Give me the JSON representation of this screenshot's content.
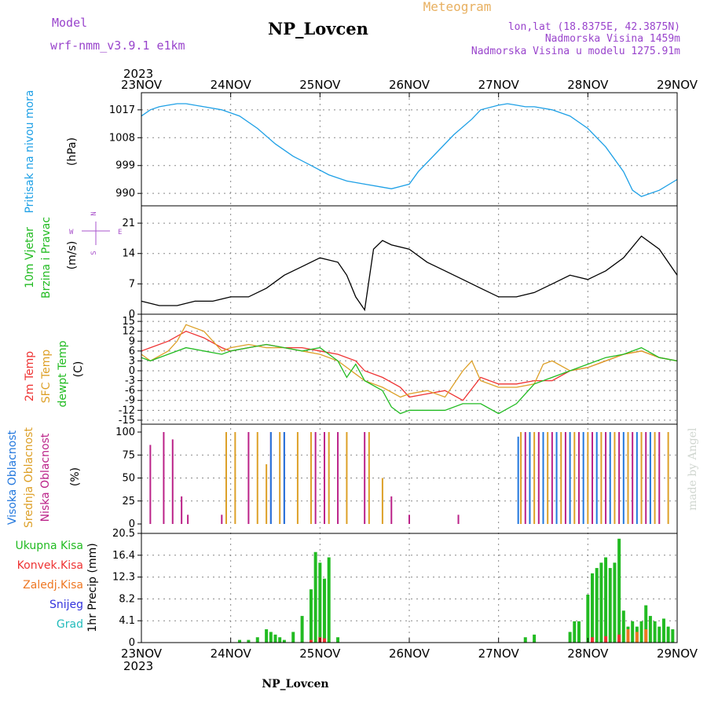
{
  "header": {
    "model_label": "Model",
    "model_value": "wrf-nmm_v3.9.1  e1km",
    "station": "NP_Lovcen",
    "meteogram": "Meteogram",
    "lonlat": "lon,lat (18.8375E, 42.3875N)",
    "elevation": "Nadmorska Visina 1459m",
    "model_elevation": "Nadmorska Visina u modelu 1275.91m",
    "year_top": "2023",
    "year_bottom": "2023",
    "footer_station": "NP_Lovcen",
    "credit": "made by Angel"
  },
  "colors": {
    "pressure": "#1ea0e6",
    "wind_speed": "#000000",
    "t2m": "#ee3333",
    "tsfc": "#dda028",
    "dewpoint": "#22bb22",
    "cloud_high": "#2277dd",
    "cloud_mid": "#dda028",
    "cloud_low": "#bb2288",
    "precip_total": "#22bb22",
    "precip_conv": "#ee3333",
    "precip_frz": "#ee7722",
    "snow": "#3333dd",
    "hail": "#22bbbb",
    "left_label_purple": "#aa55cc",
    "header_purple": "#9944cc",
    "meteogram_orange": "#e8b060"
  },
  "chart_data": [
    {
      "type": "line",
      "panel": "pressure",
      "ylabel_lines": [
        "Pritisak na nivou mora",
        "(hPa)"
      ],
      "ylim": [
        987,
        1019.5
      ],
      "yticks": [
        "990",
        "999",
        "1008",
        "1017"
      ],
      "x_categories": [
        "23NOV",
        "24NOV",
        "25NOV",
        "26NOV",
        "27NOV",
        "28NOV",
        "29NOV"
      ],
      "series": [
        {
          "x_days": [
            0.0,
            0.1,
            0.2,
            0.3,
            0.4,
            0.5,
            0.7,
            0.9,
            1.1,
            1.3,
            1.5,
            1.7,
            1.9,
            2.1,
            2.3,
            2.5,
            2.7,
            2.8,
            3.0,
            3.1,
            3.3,
            3.5,
            3.7,
            3.8,
            4.0,
            4.1,
            4.2,
            4.3,
            4.4,
            4.6,
            4.8,
            5.0,
            5.2,
            5.4,
            5.5,
            5.6,
            5.8,
            6.0
          ],
          "values": [
            1015,
            1017,
            1018,
            1018.5,
            1019,
            1019,
            1018,
            1017,
            1015,
            1011,
            1006,
            1002,
            999,
            996,
            994,
            993,
            992,
            991.5,
            993,
            997,
            1003,
            1009,
            1014,
            1017,
            1018.5,
            1019,
            1018.5,
            1018,
            1018,
            1017,
            1015,
            1011,
            1005,
            997,
            991,
            989,
            991,
            994.5
          ]
        }
      ]
    },
    {
      "type": "line",
      "panel": "wind",
      "ylabel_lines": [
        "10m Vjetar",
        "Brzina i Pravac",
        "(m/s)"
      ],
      "compass": [
        "N",
        "W",
        "E",
        "S"
      ],
      "ylim": [
        0,
        25
      ],
      "yticks": [
        "0",
        "7",
        "14",
        "21"
      ],
      "series": [
        {
          "x_days": [
            0.0,
            0.2,
            0.4,
            0.6,
            0.8,
            1.0,
            1.2,
            1.4,
            1.6,
            1.8,
            2.0,
            2.2,
            2.3,
            2.4,
            2.5,
            2.6,
            2.7,
            2.8,
            3.0,
            3.2,
            3.4,
            3.6,
            3.8,
            4.0,
            4.2,
            4.4,
            4.6,
            4.8,
            5.0,
            5.2,
            5.4,
            5.6,
            5.8,
            6.0
          ],
          "values": [
            3,
            2,
            2,
            3,
            3,
            4,
            4,
            6,
            9,
            11,
            13,
            12,
            9,
            4,
            1,
            15,
            17,
            16,
            15,
            12,
            10,
            8,
            6,
            4,
            4,
            5,
            7,
            9,
            8,
            10,
            13,
            18,
            15,
            9
          ]
        }
      ]
    },
    {
      "type": "line",
      "panel": "temperature",
      "ylabel_lines": [
        "2m Temp",
        "SFC Temp",
        "dewpt Temp",
        "(C)"
      ],
      "ylim": [
        -15.5,
        15.5
      ],
      "yticks": [
        "-15",
        "-12",
        "-9",
        "-6",
        "-3",
        "0",
        "3",
        "6",
        "9",
        "12",
        "15"
      ],
      "series": [
        {
          "name": "2m Temp",
          "x_days": [
            0.0,
            0.1,
            0.3,
            0.5,
            0.7,
            0.9,
            1.0,
            1.2,
            1.4,
            1.6,
            1.8,
            2.0,
            2.2,
            2.4,
            2.5,
            2.7,
            2.9,
            3.0,
            3.2,
            3.4,
            3.6,
            3.8,
            4.0,
            4.2,
            4.4,
            4.6,
            4.8,
            5.0,
            5.2,
            5.4,
            5.6,
            5.8,
            6.0
          ],
          "values": [
            6,
            7,
            9,
            12,
            10,
            7,
            6,
            7,
            8,
            7,
            7,
            6,
            5,
            3,
            0,
            -2,
            -5,
            -8,
            -7,
            -6,
            -9,
            -2,
            -4,
            -4,
            -3,
            -3,
            0,
            1,
            3,
            5,
            6,
            4,
            3
          ]
        },
        {
          "name": "SFC Temp",
          "x_days": [
            0.0,
            0.1,
            0.3,
            0.4,
            0.5,
            0.7,
            0.9,
            1.0,
            1.2,
            1.4,
            1.6,
            1.8,
            2.0,
            2.2,
            2.4,
            2.5,
            2.7,
            2.9,
            3.0,
            3.2,
            3.4,
            3.6,
            3.7,
            3.8,
            4.0,
            4.2,
            4.4,
            4.5,
            4.6,
            4.8,
            5.0,
            5.2,
            5.4,
            5.6,
            5.8,
            6.0
          ],
          "values": [
            5,
            3,
            6,
            9,
            14,
            12,
            6,
            7,
            8,
            7,
            7,
            6,
            5,
            3,
            -1,
            -3,
            -5,
            -8,
            -7,
            -6,
            -8,
            0,
            3,
            -3,
            -5,
            -5,
            -4,
            2,
            3,
            0,
            1,
            3,
            5,
            6,
            4,
            3
          ]
        },
        {
          "name": "dewpt Temp",
          "x_days": [
            0.0,
            0.1,
            0.3,
            0.5,
            0.7,
            0.9,
            1.0,
            1.2,
            1.4,
            1.6,
            1.8,
            2.0,
            2.2,
            2.3,
            2.4,
            2.5,
            2.7,
            2.8,
            2.9,
            3.0,
            3.2,
            3.4,
            3.6,
            3.8,
            4.0,
            4.2,
            4.4,
            4.6,
            4.8,
            5.0,
            5.2,
            5.4,
            5.6,
            5.8,
            6.0
          ],
          "values": [
            4,
            3,
            5,
            7,
            6,
            5,
            6,
            7,
            8,
            7,
            6,
            7,
            3,
            -2,
            2,
            -3,
            -6,
            -11,
            -13,
            -12,
            -12,
            -12,
            -10,
            -10,
            -13,
            -10,
            -4,
            -2,
            0,
            2,
            4,
            5,
            7,
            4,
            3
          ]
        }
      ]
    },
    {
      "type": "bar",
      "panel": "cloud",
      "ylabel_lines": [
        "Visoka Oblacnost",
        "Srednja Oblacnost",
        "Niska Oblacnost",
        "(%)"
      ],
      "ylim": [
        0,
        100
      ],
      "yticks": [
        "0",
        "25",
        "50",
        "75",
        "100"
      ],
      "series": [
        {
          "name": "Niska Oblacnost",
          "x_days": [
            0.1,
            0.25,
            0.35,
            0.45,
            0.52,
            0.9,
            1.2,
            1.45,
            1.6,
            1.95,
            2.05,
            2.2,
            2.5,
            2.8,
            3.0,
            3.55,
            4.3,
            4.45,
            4.6,
            4.75,
            4.9,
            5.05,
            5.2,
            5.35,
            5.5,
            5.65,
            5.8
          ],
          "values": [
            86,
            100,
            92,
            30,
            10,
            10,
            100,
            100,
            100,
            100,
            100,
            100,
            100,
            30,
            10,
            10,
            100,
            100,
            100,
            100,
            100,
            100,
            100,
            100,
            100,
            100,
            100
          ]
        },
        {
          "name": "Srednja Oblacnost",
          "x_days": [
            0.95,
            1.05,
            1.3,
            1.4,
            1.55,
            1.75,
            1.9,
            2.1,
            2.3,
            2.55,
            2.7,
            4.25,
            4.4,
            4.55,
            4.7,
            4.85,
            5.0,
            5.15,
            5.3,
            5.45,
            5.6,
            5.75,
            5.9
          ],
          "values": [
            100,
            100,
            100,
            65,
            100,
            100,
            100,
            100,
            100,
            100,
            50,
            100,
            100,
            100,
            100,
            100,
            100,
            100,
            100,
            100,
            100,
            100,
            100
          ]
        },
        {
          "name": "Visoka Oblacnost",
          "x_days": [
            1.45,
            1.6,
            4.22,
            4.35,
            4.5,
            4.65,
            4.8,
            4.95,
            5.1,
            5.25,
            5.4,
            5.55,
            5.7
          ],
          "values": [
            100,
            100,
            95,
            100,
            100,
            100,
            100,
            100,
            100,
            100,
            100,
            100,
            100
          ]
        }
      ]
    },
    {
      "type": "bar",
      "panel": "precip",
      "ylabel_lines": [
        "1hr Precip (mm)"
      ],
      "legend": [
        "Ukupna Kisa",
        "Konvek.Kisa",
        "Zaledj.Kisa",
        "Snijeg",
        "Grad"
      ],
      "ylim": [
        0,
        20.5
      ],
      "yticks": [
        "0",
        "4.1",
        "8.2",
        "12.3",
        "16.4",
        "20.5"
      ],
      "series": [
        {
          "name": "Ukupna Kisa",
          "x_days": [
            1.1,
            1.2,
            1.3,
            1.4,
            1.45,
            1.5,
            1.55,
            1.6,
            1.7,
            1.8,
            1.9,
            1.95,
            2.0,
            2.05,
            2.1,
            2.2,
            4.3,
            4.4,
            4.8,
            4.85,
            4.9,
            5.0,
            5.05,
            5.1,
            5.15,
            5.2,
            5.25,
            5.3,
            5.35,
            5.4,
            5.45,
            5.5,
            5.55,
            5.6,
            5.65,
            5.7,
            5.75,
            5.8,
            5.85,
            5.9,
            5.95
          ],
          "values": [
            0.5,
            0.5,
            1.0,
            2.5,
            2.0,
            1.5,
            1.0,
            0.5,
            2.0,
            5.0,
            10.0,
            17.0,
            15.0,
            12.0,
            16.0,
            1.0,
            1.0,
            1.5,
            2.0,
            4.0,
            4.0,
            9.0,
            13.0,
            14.0,
            15.0,
            16.0,
            14.0,
            15.0,
            19.5,
            6.0,
            3.0,
            4.0,
            3.0,
            4.0,
            7.0,
            5.0,
            4.0,
            3.0,
            4.5,
            3.0,
            2.5
          ]
        },
        {
          "name": "Konvek.Kisa",
          "x_days": [
            1.9,
            2.0,
            2.05,
            5.05,
            5.2,
            5.35
          ],
          "values": [
            0.5,
            1.0,
            0.8,
            1.0,
            1.2,
            1.5
          ]
        },
        {
          "name": "Zaledj.Kisa",
          "x_days": [
            5.45,
            5.55,
            5.65
          ],
          "values": [
            2.5,
            2.0,
            2.5
          ]
        }
      ]
    }
  ]
}
